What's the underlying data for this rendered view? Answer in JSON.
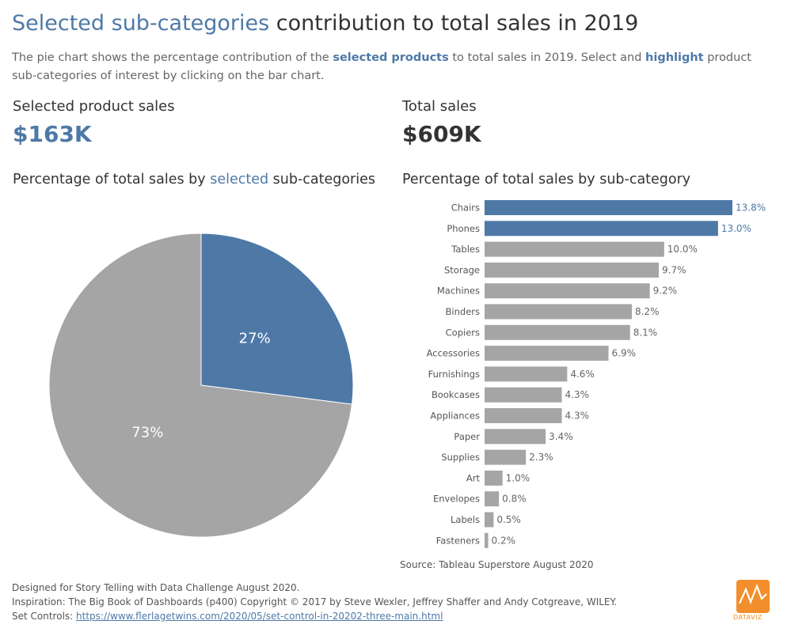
{
  "header": {
    "title_accent": "Selected sub-categories",
    "title_rest": " contribution to total sales in 2019",
    "subtitle_p1": "The pie chart shows the percentage contribution of the ",
    "subtitle_hl1": "selected products",
    "subtitle_p2": " to total sales in 2019.  Select and ",
    "subtitle_hl2": "highlight",
    "subtitle_p3": " product sub-categories of interest by clicking on the bar chart."
  },
  "kpis": {
    "selected_label": "Selected product sales",
    "selected_value": "$163K",
    "total_label": "Total sales",
    "total_value": "$609K"
  },
  "sections": {
    "pie_title_p1": "Percentage of total sales by ",
    "pie_title_hl": "selected",
    "pie_title_p2": " sub-categories",
    "bar_title": "Percentage of total sales by sub-category"
  },
  "colors": {
    "selected": "#4e79a7",
    "unselected": "#a5a5a5"
  },
  "chart_data": [
    {
      "type": "pie",
      "title": "Percentage of total sales by selected sub-categories",
      "slices": [
        {
          "label": "27%",
          "value": 27,
          "selected": true
        },
        {
          "label": "73%",
          "value": 73,
          "selected": false
        }
      ]
    },
    {
      "type": "bar",
      "orientation": "horizontal",
      "title": "Percentage of total sales by sub-category",
      "categories": [
        "Chairs",
        "Phones",
        "Tables",
        "Storage",
        "Machines",
        "Binders",
        "Copiers",
        "Accessories",
        "Furnishings",
        "Bookcases",
        "Appliances",
        "Paper",
        "Supplies",
        "Art",
        "Envelopes",
        "Labels",
        "Fasteners"
      ],
      "values": [
        13.8,
        13.0,
        10.0,
        9.7,
        9.2,
        8.2,
        8.1,
        6.9,
        4.6,
        4.3,
        4.3,
        3.4,
        2.3,
        1.0,
        0.8,
        0.5,
        0.2
      ],
      "labels": [
        "13.8%",
        "13.0%",
        "10.0%",
        "9.7%",
        "9.2%",
        "8.2%",
        "8.1%",
        "6.9%",
        "4.6%",
        "4.3%",
        "4.3%",
        "3.4%",
        "2.3%",
        "1.0%",
        "0.8%",
        "0.5%",
        "0.2%"
      ],
      "selected": [
        "Chairs",
        "Phones"
      ],
      "xlim": [
        0,
        13.8
      ]
    }
  ],
  "footer": {
    "source": "Source: Tableau Superstore August 2020",
    "line1": "Designed for Story Telling with Data Challenge August 2020.",
    "line2": "Inspiration: The Big Book of Dashboards (p400) Copyright © 2017 by  Steve Wexler, Jeffrey Shaffer and Andy Cotgreave, WILEY.",
    "line3_label": "Set Controls: ",
    "line3_link": "https://www.flerlagetwins.com/2020/05/set-control-in-20202-three-main.html",
    "logo_text": "DATAVIZ",
    "logo_icon": "line-chart-icon"
  }
}
